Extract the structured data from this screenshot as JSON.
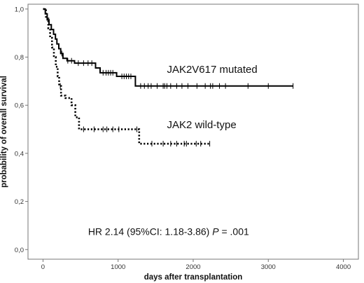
{
  "chart_data": {
    "type": "line",
    "subtype": "kaplan-meier",
    "xlabel": "days after transplantation",
    "ylabel": "probability of overall survival",
    "xlim": [
      -200,
      4200
    ],
    "ylim": [
      -0.04,
      1.02
    ],
    "xticks": [
      0,
      1000,
      2000,
      3000,
      4000
    ],
    "yticks": [
      0.0,
      0.2,
      0.4,
      0.6,
      0.8,
      1.0
    ],
    "ytick_labels": [
      "0,0",
      "0,2",
      "0,4",
      "0,6",
      "0,8",
      "1,0"
    ],
    "grid": false,
    "legend": "none",
    "series": [
      {
        "name": "JAK2V617 mutated",
        "style": "solid",
        "color": "#000000",
        "steps": [
          [
            0,
            1.0
          ],
          [
            30,
            0.98
          ],
          [
            55,
            0.955
          ],
          [
            80,
            0.935
          ],
          [
            110,
            0.915
          ],
          [
            140,
            0.895
          ],
          [
            165,
            0.875
          ],
          [
            185,
            0.855
          ],
          [
            210,
            0.835
          ],
          [
            235,
            0.815
          ],
          [
            265,
            0.795
          ],
          [
            320,
            0.785
          ],
          [
            420,
            0.775
          ],
          [
            700,
            0.755
          ],
          [
            760,
            0.735
          ],
          [
            980,
            0.72
          ],
          [
            1230,
            0.68
          ],
          [
            3330,
            0.68
          ]
        ],
        "censored": [
          250,
          330,
          380,
          470,
          540,
          600,
          650,
          800,
          840,
          870,
          900,
          930,
          1050,
          1080,
          1110,
          1140,
          1170,
          1300,
          1350,
          1400,
          1440,
          1520,
          1600,
          1620,
          1650,
          1700,
          1780,
          1850,
          1930,
          2050,
          2160,
          2230,
          2260,
          2350,
          2430,
          2730,
          3000,
          3330
        ]
      },
      {
        "name": "JAK2 wild-type",
        "style": "dotted",
        "color": "#000000",
        "steps": [
          [
            0,
            1.0
          ],
          [
            40,
            0.96
          ],
          [
            70,
            0.92
          ],
          [
            95,
            0.88
          ],
          [
            120,
            0.84
          ],
          [
            145,
            0.8
          ],
          [
            170,
            0.76
          ],
          [
            195,
            0.72
          ],
          [
            215,
            0.68
          ],
          [
            240,
            0.64
          ],
          [
            300,
            0.63
          ],
          [
            380,
            0.6
          ],
          [
            430,
            0.55
          ],
          [
            480,
            0.5
          ],
          [
            1280,
            0.44
          ],
          [
            2220,
            0.44
          ]
        ],
        "censored": [
          230,
          540,
          680,
          800,
          850,
          930,
          1010,
          1250,
          1450,
          1600,
          1700,
          1780,
          1880,
          1910,
          2040,
          2100,
          2220
        ]
      }
    ],
    "series_labels": [
      {
        "text": "JAK2V617 mutated",
        "x": 1650,
        "y": 0.735
      },
      {
        "text": "JAK2 wild-type",
        "x": 1650,
        "y": 0.505
      }
    ],
    "annotation": {
      "hr_text": "HR 2.14 (95%CI: 1.18-3.86)",
      "p_italic": "P",
      "p_rest": " = .001",
      "x": 600,
      "y": 0.06
    }
  }
}
